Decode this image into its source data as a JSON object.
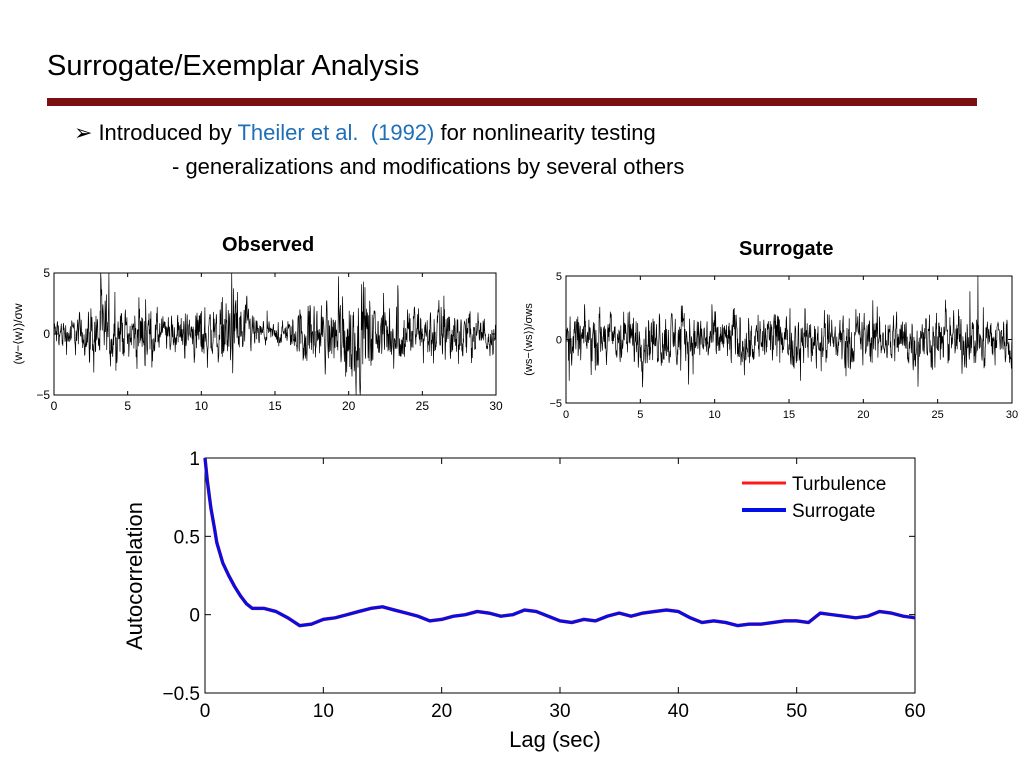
{
  "slide": {
    "title": "Surrogate/Exemplar Analysis",
    "bullet": {
      "glyph": "➢",
      "prefix": "Introduced by",
      "citation_authors": "Theiler et al.",
      "citation_year": "(1992)",
      "suffix": "for nonlinearity testing"
    },
    "sub_bullet": "- generalizations and modifications by several others",
    "link_color": "#1f6fb8",
    "rule_color": "#7b0f12"
  },
  "chart_data": [
    {
      "type": "line",
      "title": "Observed",
      "ylabel": "(w−⟨w⟩)/σw",
      "xlim": [
        0,
        30
      ],
      "ylim": [
        -5,
        5
      ],
      "xticks": [
        0,
        5,
        10,
        15,
        20,
        25,
        30
      ],
      "yticks": [
        -5,
        0,
        5
      ],
      "series": [
        {
          "color": "#000000",
          "envelope": {
            "t": [
              0,
              2,
              3,
              4,
              5,
              6,
              7,
              8,
              9,
              10,
              11,
              12,
              13,
              14,
              15,
              16,
              17,
              18,
              19,
              20,
              21,
              22,
              23,
              24,
              25,
              26,
              27,
              28,
              29,
              30
            ],
            "amplitude": [
              0.9,
              1.2,
              2.5,
              1.9,
              1.3,
              2.0,
              1.3,
              1.0,
              1.3,
              2.0,
              1.6,
              2.6,
              1.8,
              0.7,
              0.6,
              0.8,
              2.0,
              1.8,
              2.0,
              3.0,
              2.8,
              1.8,
              2.0,
              1.7,
              1.6,
              2.0,
              1.8,
              1.5,
              1.2,
              1.0
            ]
          }
        }
      ]
    },
    {
      "type": "line",
      "title": "Surrogate",
      "ylabel": "(ws−⟨ws⟩)/σws",
      "xlim": [
        0,
        30
      ],
      "ylim": [
        -5,
        5
      ],
      "xticks": [
        0,
        5,
        10,
        15,
        20,
        25,
        30
      ],
      "yticks": [
        -5,
        0,
        5
      ],
      "series": [
        {
          "color": "#000000",
          "envelope": {
            "t": [
              0,
              30
            ],
            "amplitude": [
              1.6,
              1.6
            ]
          }
        }
      ]
    },
    {
      "type": "line",
      "title": "",
      "xlabel": "Lag (sec)",
      "ylabel": "Autocorrelation",
      "xlim": [
        0,
        60
      ],
      "ylim": [
        -0.5,
        1
      ],
      "xticks": [
        0,
        10,
        20,
        30,
        40,
        50,
        60
      ],
      "yticks": [
        -0.5,
        0,
        0.5,
        1
      ],
      "ytick_labels": [
        "−0.5",
        "0",
        "0.5",
        "1"
      ],
      "legend_position": "top-right",
      "x": [
        0,
        0.2,
        0.5,
        0.8,
        1,
        1.5,
        2,
        2.5,
        3,
        3.5,
        4,
        4.5,
        5,
        6,
        7,
        8,
        9,
        10,
        11,
        12,
        13,
        14,
        15,
        16,
        17,
        18,
        19,
        20,
        21,
        22,
        23,
        24,
        25,
        26,
        27,
        28,
        29,
        30,
        31,
        32,
        33,
        34,
        35,
        36,
        37,
        38,
        39,
        40,
        41,
        42,
        43,
        44,
        45,
        46,
        47,
        48,
        49,
        50,
        51,
        52,
        53,
        54,
        55,
        56,
        57,
        58,
        59,
        60
      ],
      "series": [
        {
          "name": "Turbulence",
          "color": "#ff1a1a",
          "values": [
            1.0,
            0.85,
            0.68,
            0.55,
            0.46,
            0.33,
            0.25,
            0.18,
            0.12,
            0.07,
            0.04,
            0.04,
            0.04,
            0.02,
            -0.02,
            -0.07,
            -0.06,
            -0.03,
            -0.02,
            0.0,
            0.02,
            0.04,
            0.05,
            0.03,
            0.01,
            -0.01,
            -0.04,
            -0.03,
            -0.01,
            0.0,
            0.02,
            0.01,
            -0.01,
            0.0,
            0.03,
            0.02,
            -0.01,
            -0.04,
            -0.05,
            -0.03,
            -0.04,
            -0.01,
            0.01,
            -0.01,
            0.01,
            0.02,
            0.03,
            0.02,
            -0.02,
            -0.05,
            -0.04,
            -0.05,
            -0.07,
            -0.06,
            -0.06,
            -0.05,
            -0.04,
            -0.04,
            -0.05,
            0.01,
            0.0,
            -0.01,
            -0.02,
            -0.01,
            0.02,
            0.01,
            -0.01,
            -0.02
          ]
        },
        {
          "name": "Surrogate",
          "color": "#0010e6",
          "values": [
            1.0,
            0.85,
            0.68,
            0.55,
            0.46,
            0.33,
            0.25,
            0.18,
            0.12,
            0.07,
            0.04,
            0.04,
            0.04,
            0.02,
            -0.02,
            -0.07,
            -0.06,
            -0.03,
            -0.02,
            0.0,
            0.02,
            0.04,
            0.05,
            0.03,
            0.01,
            -0.01,
            -0.04,
            -0.03,
            -0.01,
            0.0,
            0.02,
            0.01,
            -0.01,
            0.0,
            0.03,
            0.02,
            -0.01,
            -0.04,
            -0.05,
            -0.03,
            -0.04,
            -0.01,
            0.01,
            -0.01,
            0.01,
            0.02,
            0.03,
            0.02,
            -0.02,
            -0.05,
            -0.04,
            -0.05,
            -0.07,
            -0.06,
            -0.06,
            -0.05,
            -0.04,
            -0.04,
            -0.05,
            0.01,
            0.0,
            -0.01,
            -0.02,
            -0.01,
            0.02,
            0.01,
            -0.01,
            -0.02
          ]
        }
      ]
    }
  ]
}
